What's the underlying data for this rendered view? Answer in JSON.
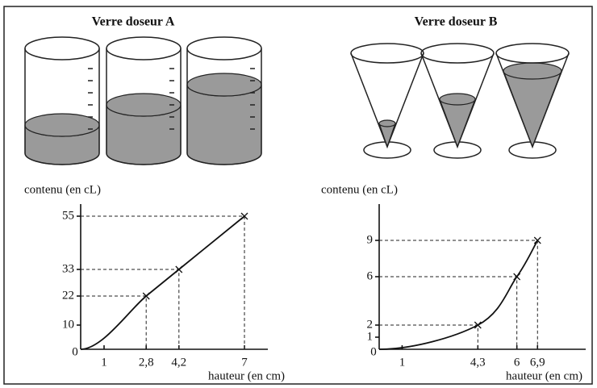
{
  "chart_data": [
    {
      "type": "line",
      "title": "Verre doseur A",
      "x_label": "hauteur (en cm)",
      "y_label": "contenu (en cL)",
      "x": [
        0,
        2.8,
        4.2,
        7
      ],
      "values": [
        0,
        22,
        33,
        55
      ],
      "color": "#111111",
      "xlim": [
        0,
        8
      ],
      "ylim": [
        0,
        60
      ],
      "xticks": [
        0,
        1,
        {
          "value": 2.8,
          "label": "2,8"
        },
        {
          "value": 4.2,
          "label": "4,2"
        },
        7
      ],
      "yticks": [
        10,
        22,
        33,
        55
      ]
    },
    {
      "type": "line",
      "title": "Verre doseur B",
      "x_label": "hauteur (en cm)",
      "y_label": "contenu (en cL)",
      "x": [
        0,
        4.3,
        6,
        6.9
      ],
      "values": [
        0,
        2,
        6,
        9
      ],
      "color": "#111111",
      "xlim": [
        0,
        9
      ],
      "ylim": [
        0,
        12
      ],
      "xticks": [
        0,
        1,
        {
          "value": 4.3,
          "label": "4,3"
        },
        6,
        {
          "value": 6.9,
          "label": "6,9"
        }
      ],
      "yticks": [
        1,
        2,
        6,
        9
      ]
    }
  ]
}
